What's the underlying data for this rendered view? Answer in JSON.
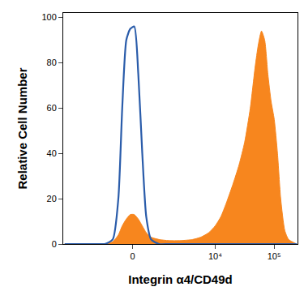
{
  "chart_data": {
    "type": "area",
    "x_label": "Integrin α4/CD49d",
    "y_label": "Relative Cell Number",
    "x": [
      -5672,
      -2992,
      -1528,
      -1056,
      -688,
      -472,
      -336,
      -202,
      -75,
      50,
      177,
      307,
      444,
      626,
      976,
      1528,
      2544,
      4128,
      5672,
      7784,
      10000,
      12480,
      15440,
      19840,
      25520,
      31760,
      39520,
      47680,
      54080,
      61200,
      69360,
      78560,
      89120,
      100800,
      114400,
      129600,
      152000,
      176800,
      243200
    ],
    "series": [
      {
        "type": "area",
        "color": "#f7861e",
        "values": [
          0,
          0,
          0,
          0,
          1,
          4,
          8,
          11,
          13,
          13,
          11,
          8,
          5,
          3,
          2,
          1.5,
          1.5,
          2,
          3,
          5,
          8,
          12,
          18,
          26,
          35,
          45,
          60,
          78,
          88,
          94,
          90,
          75,
          63,
          55,
          40,
          20,
          6,
          2,
          0
        ]
      },
      {
        "type": "line",
        "color": "#2a5caa",
        "values": [
          0,
          0,
          0,
          0,
          2,
          20,
          60,
          90,
          95,
          96,
          75,
          40,
          12,
          2,
          0,
          0,
          0,
          0,
          0,
          0,
          0,
          0,
          0,
          0,
          0,
          0,
          0,
          0,
          0,
          0,
          0,
          0,
          0,
          0,
          0,
          0,
          0,
          0,
          0
        ]
      }
    ],
    "xlim": [
      -6000,
      250000
    ],
    "xticks": [
      0,
      {
        "value": 10000,
        "label": "10⁴"
      },
      {
        "value": 100000,
        "label": "10⁵"
      }
    ],
    "ylim": [
      0,
      102
    ],
    "yticks": [
      0,
      20,
      40,
      60,
      80,
      100
    ],
    "grid": false
  }
}
